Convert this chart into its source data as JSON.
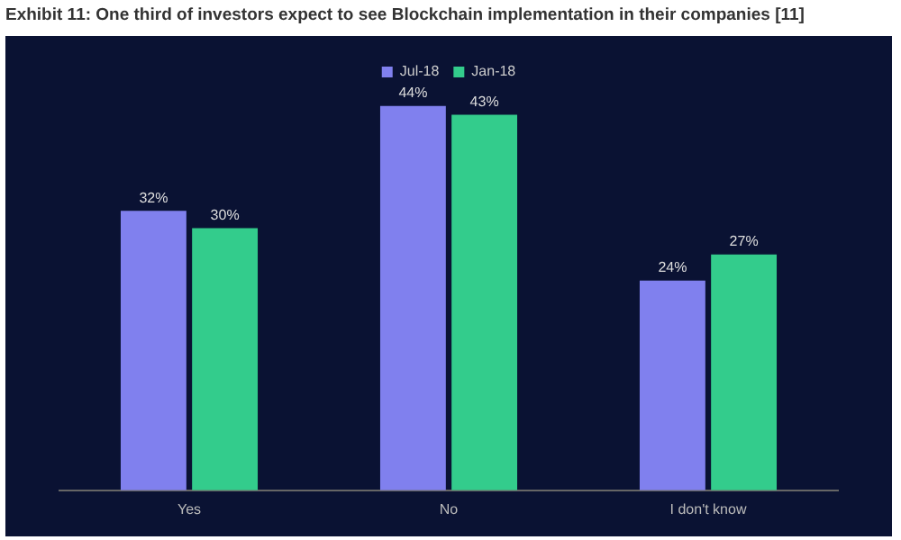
{
  "chart_data": {
    "type": "bar",
    "title": "Exhibit 11: One third of investors expect to see Blockchain implementation in their companies [11]",
    "categories": [
      "Yes",
      "No",
      "I don't know"
    ],
    "series": [
      {
        "name": "Jul-18",
        "color": "#8080ee",
        "values": [
          32,
          44,
          24
        ],
        "value_labels": [
          "32%",
          "44%",
          "24%"
        ]
      },
      {
        "name": "Jan-18",
        "color": "#33cc8c",
        "values": [
          30,
          43,
          27
        ],
        "value_labels": [
          "30%",
          "43%",
          "27%"
        ]
      }
    ],
    "grid": false,
    "legend": "top"
  }
}
